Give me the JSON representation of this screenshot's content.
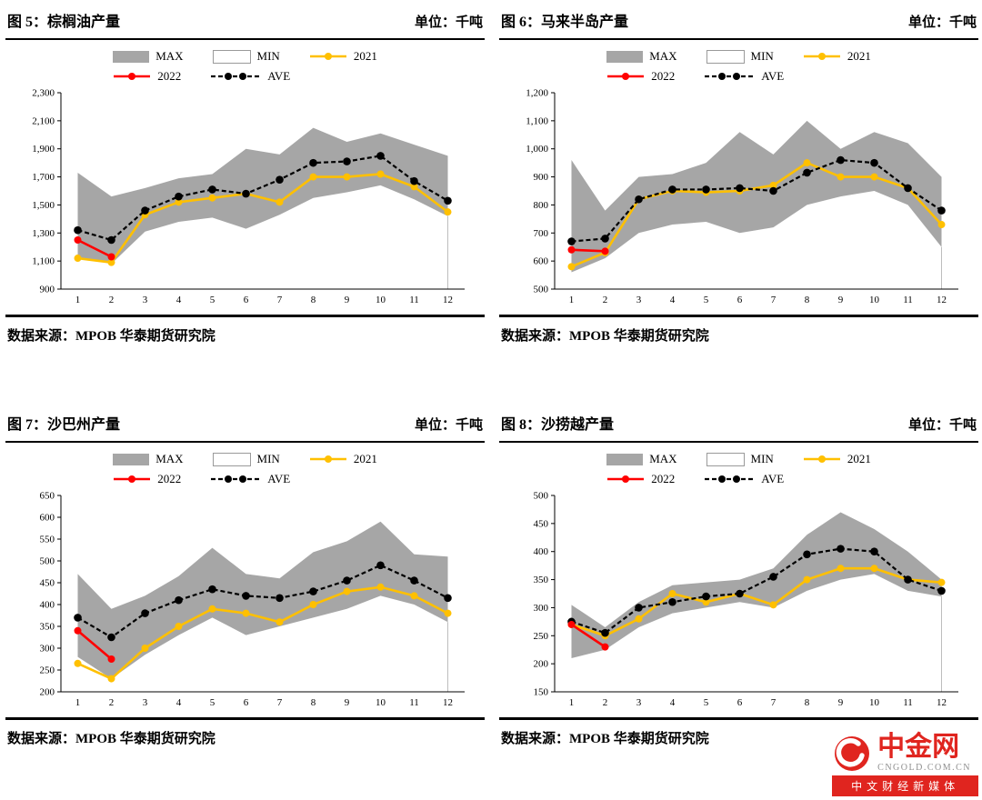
{
  "legend": {
    "max": "MAX",
    "min": "MIN",
    "y2021": "2021",
    "y2022": "2022",
    "ave": "AVE"
  },
  "colors": {
    "band": "#a6a6a6",
    "y2021": "#ffc000",
    "y2022": "#ff0000",
    "ave": "#000000",
    "logo_red": "#e0251f"
  },
  "logo": {
    "name": "中金网",
    "domain": "CNGOLD.COM.CN",
    "tagline": "中文财经新媒体"
  },
  "chart_data": [
    {
      "id": "fig5",
      "type": "line",
      "title": "图 5：棕榈油产量",
      "unit": "单位：千吨",
      "source": "数据来源：MPOB  华泰期货研究院",
      "x": [
        1,
        2,
        3,
        4,
        5,
        6,
        7,
        8,
        9,
        10,
        11,
        12
      ],
      "xlabel": "",
      "ylabel": "",
      "ylim": [
        900,
        2300
      ],
      "ystep": 200,
      "grid": false,
      "legend_position": "top",
      "series": [
        {
          "name": "MAX",
          "values": [
            1730,
            1560,
            1620,
            1690,
            1720,
            1900,
            1860,
            2050,
            1950,
            2010,
            1930,
            1850
          ]
        },
        {
          "name": "MIN",
          "values": [
            1130,
            1080,
            1310,
            1380,
            1410,
            1330,
            1430,
            1550,
            1590,
            1640,
            1540,
            1420
          ]
        },
        {
          "name": "2021",
          "values": [
            1120,
            1090,
            1430,
            1520,
            1550,
            1580,
            1520,
            1700,
            1700,
            1720,
            1630,
            1450
          ]
        },
        {
          "name": "2022",
          "values": [
            1250,
            1130
          ]
        },
        {
          "name": "AVE",
          "values": [
            1320,
            1250,
            1460,
            1560,
            1610,
            1580,
            1680,
            1800,
            1810,
            1850,
            1670,
            1530
          ]
        }
      ]
    },
    {
      "id": "fig6",
      "type": "line",
      "title": "图 6：马来半岛产量",
      "unit": "单位：千吨",
      "source": "数据来源：MPOB  华泰期货研究院",
      "x": [
        1,
        2,
        3,
        4,
        5,
        6,
        7,
        8,
        9,
        10,
        11,
        12
      ],
      "xlabel": "",
      "ylabel": "",
      "ylim": [
        500,
        1200
      ],
      "ystep": 100,
      "grid": false,
      "legend_position": "top",
      "series": [
        {
          "name": "MAX",
          "values": [
            960,
            780,
            900,
            910,
            950,
            1060,
            980,
            1100,
            1000,
            1060,
            1020,
            900
          ]
        },
        {
          "name": "MIN",
          "values": [
            560,
            610,
            700,
            730,
            740,
            700,
            720,
            800,
            830,
            850,
            800,
            650
          ]
        },
        {
          "name": "2021",
          "values": [
            580,
            630,
            820,
            850,
            845,
            850,
            870,
            950,
            900,
            900,
            860,
            730
          ]
        },
        {
          "name": "2022",
          "values": [
            640,
            635
          ]
        },
        {
          "name": "AVE",
          "values": [
            670,
            680,
            820,
            855,
            855,
            860,
            850,
            915,
            960,
            950,
            860,
            780
          ]
        }
      ]
    },
    {
      "id": "fig7",
      "type": "line",
      "title": "图 7：沙巴州产量",
      "unit": "单位：千吨",
      "source": "数据来源：MPOB  华泰期货研究院",
      "x": [
        1,
        2,
        3,
        4,
        5,
        6,
        7,
        8,
        9,
        10,
        11,
        12
      ],
      "xlabel": "",
      "ylabel": "",
      "ylim": [
        200,
        650
      ],
      "ystep": 50,
      "grid": false,
      "legend_position": "top",
      "series": [
        {
          "name": "MAX",
          "values": [
            470,
            390,
            420,
            465,
            530,
            470,
            460,
            520,
            545,
            590,
            515,
            510
          ]
        },
        {
          "name": "MIN",
          "values": [
            280,
            230,
            285,
            330,
            370,
            330,
            350,
            370,
            390,
            420,
            400,
            360
          ]
        },
        {
          "name": "2021",
          "values": [
            265,
            230,
            300,
            350,
            390,
            380,
            360,
            400,
            430,
            440,
            420,
            380
          ]
        },
        {
          "name": "2022",
          "values": [
            340,
            275
          ]
        },
        {
          "name": "AVE",
          "values": [
            370,
            325,
            380,
            410,
            435,
            420,
            415,
            430,
            455,
            490,
            455,
            415
          ]
        }
      ]
    },
    {
      "id": "fig8",
      "type": "line",
      "title": "图 8：沙捞越产量",
      "unit": "单位：千吨",
      "source": "数据来源：MPOB  华泰期货研究院",
      "x": [
        1,
        2,
        3,
        4,
        5,
        6,
        7,
        8,
        9,
        10,
        11,
        12
      ],
      "xlabel": "",
      "ylabel": "",
      "ylim": [
        150,
        500
      ],
      "ystep": 50,
      "grid": false,
      "legend_position": "top",
      "series": [
        {
          "name": "MAX",
          "values": [
            305,
            265,
            310,
            340,
            345,
            350,
            370,
            430,
            470,
            440,
            400,
            350
          ]
        },
        {
          "name": "MIN",
          "values": [
            210,
            225,
            265,
            290,
            300,
            310,
            300,
            330,
            350,
            360,
            330,
            320
          ]
        },
        {
          "name": "2021",
          "values": [
            270,
            250,
            280,
            325,
            310,
            325,
            305,
            350,
            370,
            370,
            350,
            345
          ]
        },
        {
          "name": "2022",
          "values": [
            270,
            230
          ]
        },
        {
          "name": "AVE",
          "values": [
            275,
            255,
            300,
            310,
            320,
            325,
            355,
            395,
            405,
            400,
            350,
            330
          ]
        }
      ]
    }
  ]
}
